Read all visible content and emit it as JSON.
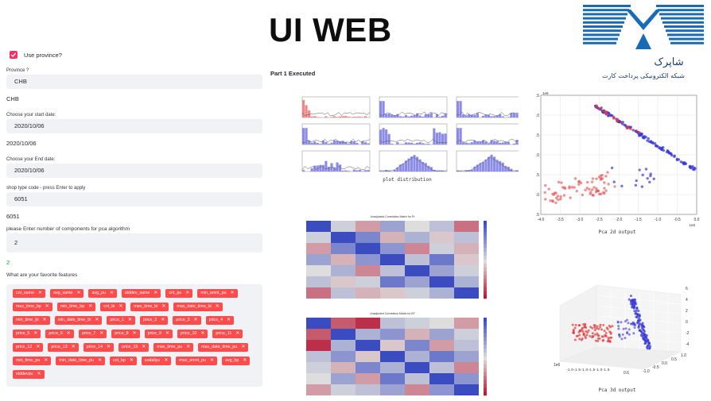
{
  "theme": {
    "accent": "#f63366",
    "tag": "#ff4b4b",
    "plot_blue": "#3b3bd6",
    "plot_red": "#e23b3b"
  },
  "app": {
    "title": "UI WEB",
    "status": "Part 1 Executed"
  },
  "form": {
    "use_province_label": "Use province?",
    "use_province_checked": true,
    "province_label": "Province ?",
    "province_value": "CHB",
    "province_echo": "CHB",
    "start_label": "Choose your start date:",
    "start_value": "2020/10/06",
    "start_echo": "2020/10/06",
    "end_label": "Choose your End date:",
    "end_value": "2020/10/06",
    "shop_label": "shop type code - press Enter to apply",
    "shop_value": "6051",
    "shop_echo": "6051",
    "components_label": "please Enter number of components for pca algorithm",
    "components_value": "2",
    "components_echo": "2",
    "features_label": "What are your favorite features",
    "features": [
      "cnt_same",
      "avg_same",
      "avg_pu",
      "stddev_same",
      "cnt_pu",
      "min_amnt_pu",
      "max_time_bp",
      "min_time_bp",
      "cnt_bi",
      "max_time_bi",
      "max_date_time_bi",
      "min_time_bi",
      "min_date_time_bi",
      "price_1",
      "price_2",
      "price_3",
      "price_4",
      "price_5",
      "price_6",
      "price_7",
      "price_8",
      "price_9",
      "price_10",
      "price_11",
      "price_12",
      "price_13",
      "price_14",
      "price_15",
      "max_time_pu",
      "max_date_time_pu",
      "min_time_pu",
      "min_date_time_pu",
      "cnt_bp",
      "sodaliyu",
      "max_amnt_pu",
      "avg_bp",
      "stddevpu"
    ]
  },
  "logo": {
    "text": "شبکه الکترونیکی پرداخت کارت",
    "brand": "شاپرک"
  },
  "plots": {
    "distribution_caption": "plot distribution",
    "pca_2d_caption": "Pca 2d output",
    "pca_3d_caption": "Pca 3d output",
    "heatmap_title_1": "Unadjusted Correlation Matrix for Pt",
    "heatmap_title_2": "Unadjusted Correlation Matrix for BT"
  },
  "chart_data": [
    {
      "type": "scatter",
      "title": "",
      "xlabel": "Pca 2d output",
      "x_ticks": [
        "-4.0",
        "-3.5",
        "-3.0",
        "-2.5",
        "-2.0",
        "-1.5",
        "-1.0",
        "-0.5",
        "0.0"
      ],
      "y_ticks": [
        ".5",
        ".0",
        ".5",
        ".0",
        ".5",
        ".0",
        ".5"
      ],
      "x_scale_label": "1e6",
      "y_scale_label": "1e6",
      "xlim": [
        -4.0,
        0.0
      ],
      "ylim": [
        -3.5,
        1.0
      ],
      "grid": true,
      "series": [
        {
          "color": "blue",
          "trend": [
            [
              -2.6,
              0.6
            ],
            [
              -0.05,
              -1.8
            ]
          ]
        },
        {
          "color": "red",
          "cluster_center": [
            -3.0,
            -2.5
          ]
        }
      ]
    },
    {
      "type": "scatter",
      "xlabel": "Pca 3d output",
      "z_ticks": [
        "6",
        "4",
        "2",
        "0",
        "-2",
        "-4"
      ],
      "x_ticks": [
        "-1.0",
        "-0.5",
        "0.0",
        "0.5",
        "1.0"
      ],
      "y_ticks": [
        "1e6",
        "0.6"
      ]
    },
    {
      "type": "heatmap",
      "title": "Unadjusted Correlation Matrix for Pt",
      "rows": 7,
      "cols": 7,
      "values": [
        [
          1.0,
          0.1,
          -0.3,
          0.4,
          0.0,
          0.2,
          -0.5
        ],
        [
          0.1,
          1.0,
          0.6,
          -0.2,
          0.3,
          -0.1,
          0.2
        ],
        [
          -0.3,
          0.6,
          1.0,
          0.5,
          -0.4,
          0.1,
          -0.2
        ],
        [
          0.4,
          -0.2,
          0.5,
          1.0,
          0.2,
          0.7,
          -0.1
        ],
        [
          0.0,
          0.3,
          -0.4,
          0.2,
          1.0,
          0.4,
          0.1
        ],
        [
          0.2,
          -0.1,
          0.1,
          0.7,
          0.4,
          1.0,
          0.3
        ],
        [
          -0.5,
          0.2,
          -0.2,
          -0.1,
          0.1,
          0.3,
          1.0
        ]
      ]
    },
    {
      "type": "heatmap",
      "title": "Unadjusted Correlation Matrix for BT",
      "rows": 7,
      "cols": 7,
      "values": [
        [
          1.0,
          -0.6,
          -0.8,
          0.2,
          0.1,
          0.0,
          -0.3
        ],
        [
          -0.6,
          1.0,
          0.3,
          0.5,
          -0.2,
          0.4,
          0.1
        ],
        [
          -0.8,
          0.3,
          1.0,
          -0.1,
          0.6,
          -0.3,
          0.2
        ],
        [
          0.2,
          0.5,
          -0.1,
          1.0,
          0.3,
          0.7,
          0.4
        ],
        [
          0.1,
          -0.2,
          0.6,
          0.3,
          1.0,
          0.2,
          -0.4
        ],
        [
          0.0,
          0.4,
          -0.3,
          0.7,
          0.2,
          1.0,
          0.5
        ],
        [
          -0.3,
          0.1,
          0.2,
          0.4,
          -0.4,
          0.5,
          1.0
        ]
      ]
    }
  ]
}
